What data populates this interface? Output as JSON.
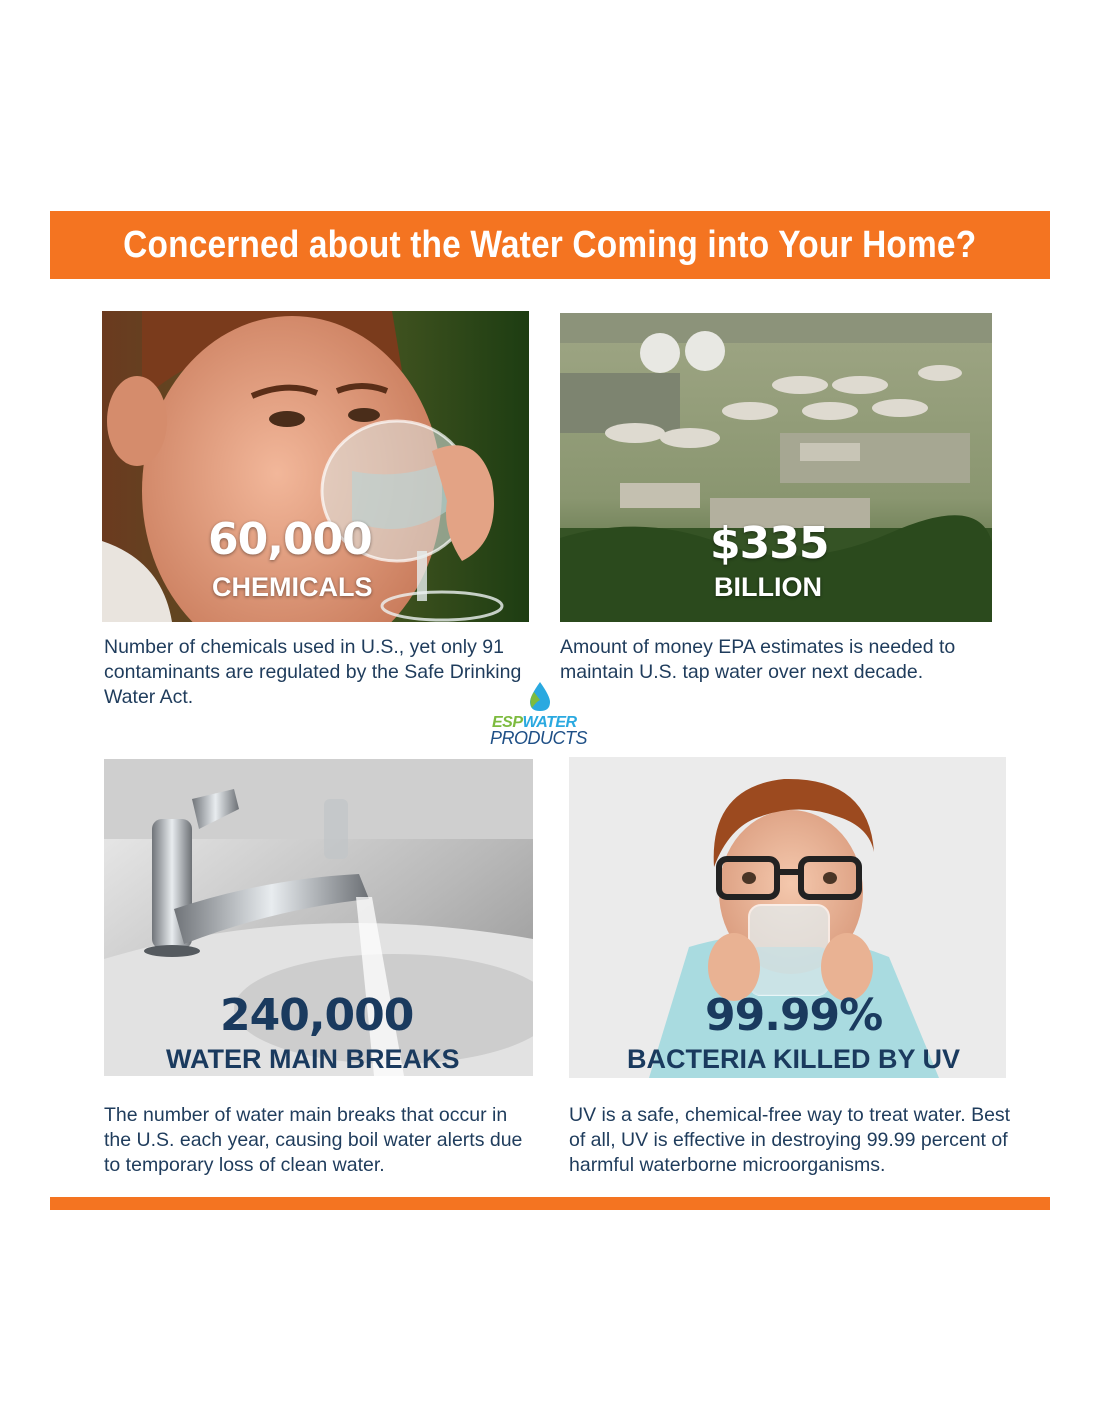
{
  "banner": {
    "title": "Concerned about the Water Coming into Your Home?"
  },
  "colors": {
    "accent": "#f47421",
    "navy": "#1a3a5e",
    "text": "#1f3c5c"
  },
  "stats": [
    {
      "number": "60,000",
      "label": "CHEMICALS",
      "description": "Number of chemicals used in U.S., yet only 91 contaminants are regulated by the Safe Drinking Water Act."
    },
    {
      "number": "$335",
      "label": "BILLION",
      "description": "Amount of money EPA estimates is needed to maintain U.S. tap water over next decade."
    },
    {
      "number": "240,000",
      "label": "WATER MAIN BREAKS",
      "description": "The number of water main breaks that occur in the U.S. each year, causing boil water alerts due to temporary loss of clean water."
    },
    {
      "number": "99.99%",
      "label": "BACTERIA KILLED BY UV",
      "description": "UV is a safe, chemical-free way to treat water. Best of all, UV is effective in destroying 99.99 percent of harmful waterborne microorganisms."
    }
  ],
  "logo": {
    "part1": "ESP",
    "part2": "WATER",
    "part3": "PRODUCTS"
  }
}
